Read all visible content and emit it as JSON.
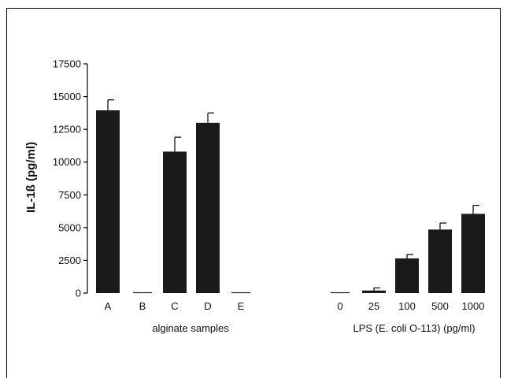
{
  "chart_data": {
    "type": "bar",
    "ylabel": "IL-1ß (pg/ml)",
    "ylim": [
      0,
      17500
    ],
    "yticks": [
      0,
      2500,
      5000,
      7500,
      10000,
      12500,
      15000,
      17500
    ],
    "ytick_labels": [
      "0",
      "2500",
      "5000",
      "7500",
      "10000",
      "12500",
      "15000",
      "17500"
    ],
    "grid": false,
    "legend": "none",
    "bar_color": "#1a1a1a",
    "groups": [
      {
        "label": "alginate samples",
        "categories": [
          "A",
          "B",
          "C",
          "D",
          "E"
        ],
        "values": [
          13950,
          0,
          10800,
          13000,
          0
        ],
        "errors": [
          800,
          0,
          1100,
          750,
          0
        ]
      },
      {
        "label": "LPS (E. coli O-113) (pg/ml)",
        "categories": [
          "0",
          "25",
          "100",
          "500",
          "1000"
        ],
        "values": [
          0,
          200,
          2650,
          4850,
          6050
        ],
        "errors": [
          0,
          200,
          300,
          500,
          650
        ]
      }
    ]
  }
}
